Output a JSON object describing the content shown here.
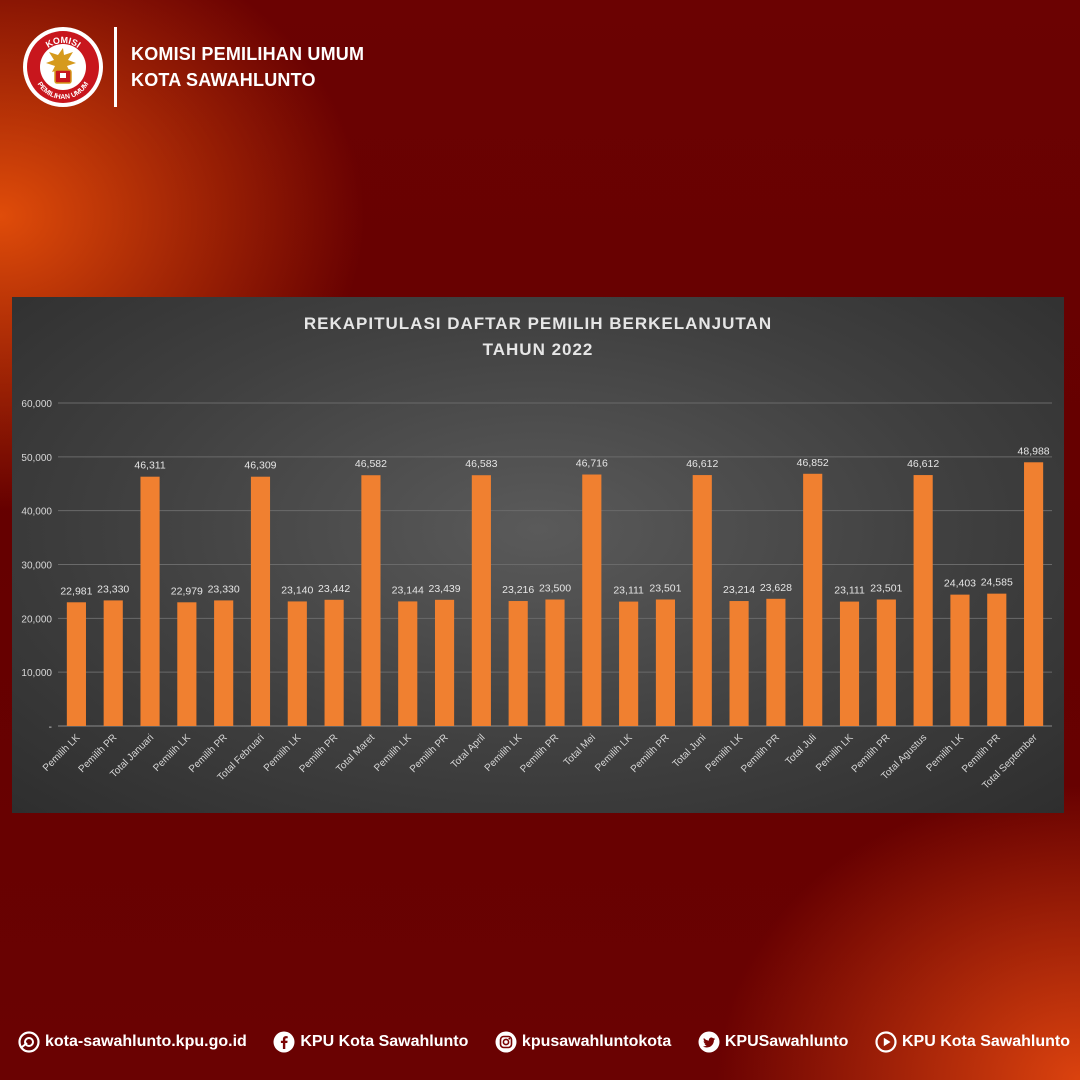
{
  "header": {
    "line1": "KOMISI PEMILIHAN UMUM",
    "line2": "KOTA SAWAHLUNTO",
    "logo_top_text": "KOMISI",
    "logo_bottom_text": "PEMILIHAN UMUM"
  },
  "chart_data": {
    "type": "bar",
    "title": "REKAPITULASI DAFTAR PEMILIH BERKELANJUTAN",
    "subtitle": "TAHUN 2022",
    "categories": [
      "Pemilih LK",
      "Pemilih PR",
      "Total Januari",
      "Pemilih LK",
      "Pemilih PR",
      "Total Februari",
      "Pemilih LK",
      "Pemilih PR",
      "Total Maret",
      "Pemilih LK",
      "Pemilih PR",
      "Total April",
      "Pemilih LK",
      "Pemilih PR",
      "Total Mei",
      "Pemilih LK",
      "Pemilih PR",
      "Total Juni",
      "Pemilih LK",
      "Pemilih PR",
      "Total Juli",
      "Pemilih LK",
      "Pemilih PR",
      "Total Agustus",
      "Pemilih LK",
      "Pemilih PR",
      "Total September"
    ],
    "values": [
      22981,
      23330,
      46311,
      22979,
      23330,
      46309,
      23140,
      23442,
      46582,
      23144,
      23439,
      46583,
      23216,
      23500,
      46716,
      23111,
      23501,
      46612,
      23214,
      23628,
      46852,
      23111,
      23501,
      46612,
      24403,
      24585,
      48988
    ],
    "value_labels": [
      "22,981",
      "23,330",
      "46,311",
      "22,979",
      "23,330",
      "46,309",
      "23,140",
      "23,442",
      "46,582",
      "23,144",
      "23,439",
      "46,583",
      "23,216",
      "23,500",
      "46,716",
      "23,111",
      "23,501",
      "46,612",
      "23,214",
      "23,628",
      "46,852",
      "23,111",
      "23,501",
      "46,612",
      "24,403",
      "24,585",
      "48,988"
    ],
    "ylim": [
      0,
      60000
    ],
    "yticks": [
      0,
      10000,
      20000,
      30000,
      40000,
      50000,
      60000
    ],
    "ytick_labels": [
      "-",
      "10,000",
      "20,000",
      "30,000",
      "40,000",
      "50,000",
      "60,000"
    ],
    "bar_color": "#f08030",
    "grid": true,
    "legend": "none"
  },
  "footer": {
    "items": [
      {
        "icon": "globe-icon",
        "label": "kota-sawahlunto.kpu.go.id"
      },
      {
        "icon": "facebook-icon",
        "label": "KPU Kota Sawahlunto"
      },
      {
        "icon": "instagram-icon",
        "label": "kpusawahluntokota"
      },
      {
        "icon": "twitter-icon",
        "label": "KPUSawahlunto"
      },
      {
        "icon": "youtube-icon",
        "label": "KPU Kota Sawahlunto"
      }
    ]
  },
  "colors": {
    "background": "#6b0202",
    "accent": "#e65a10",
    "panel": "#404040",
    "bar": "#f08030",
    "text_light": "#e6e6e6"
  }
}
